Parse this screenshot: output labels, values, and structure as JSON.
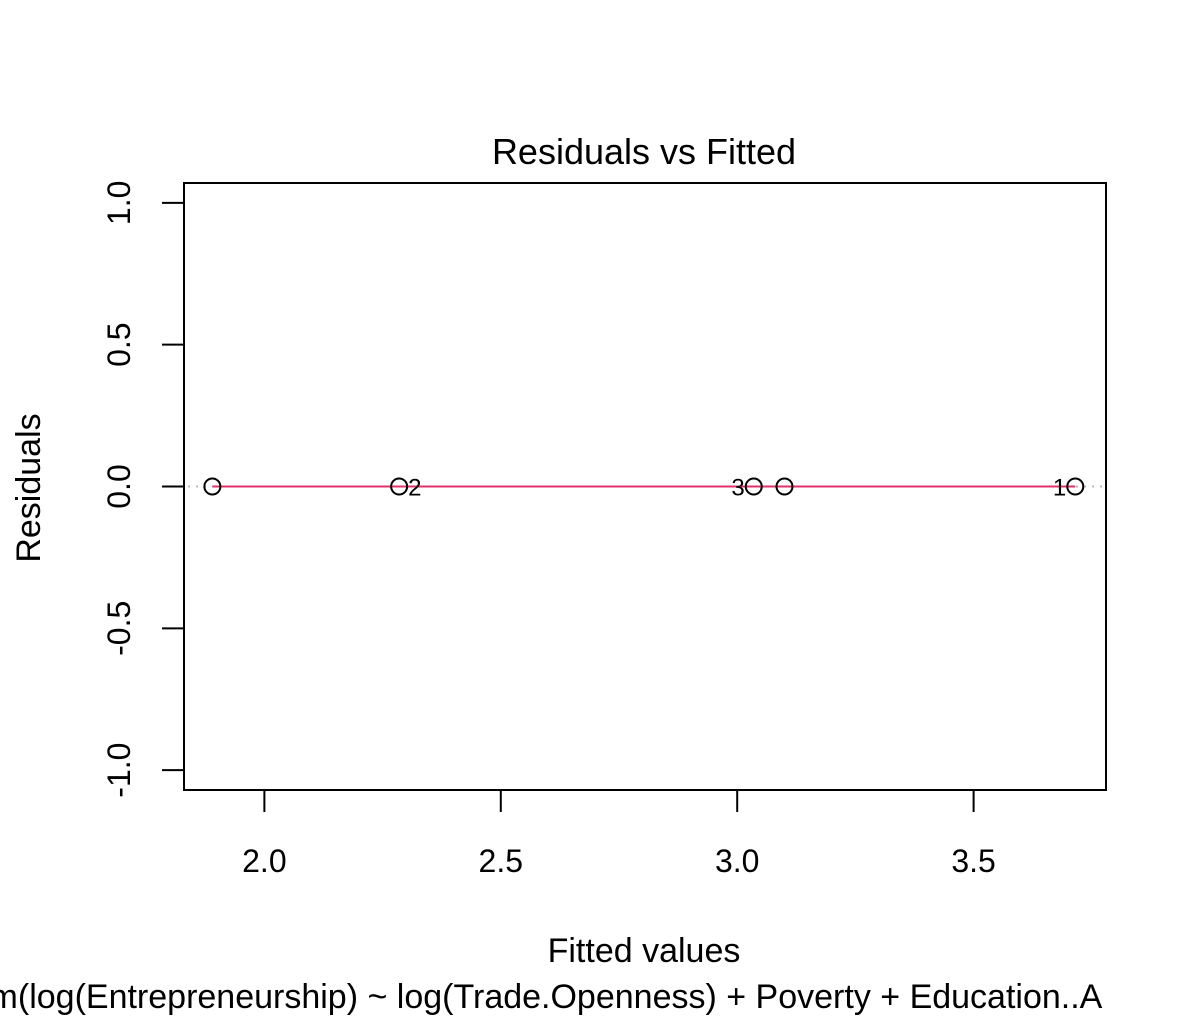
{
  "chart_data": {
    "type": "scatter",
    "title": "Residuals vs Fitted",
    "xlabel": "Fitted values",
    "ylabel": "Residuals",
    "subtitle": "lm(log(Entrepreneurship) ~ log(Trade.Openness) + Poverty + Education..A",
    "xlim": [
      1.83,
      3.78
    ],
    "ylim": [
      -1.07,
      1.07
    ],
    "x_ticks": [
      2.0,
      2.5,
      3.0,
      3.5
    ],
    "x_tick_labels": [
      "2.0",
      "2.5",
      "3.0",
      "3.5"
    ],
    "y_ticks": [
      -1.0,
      -0.5,
      0.0,
      0.5,
      1.0
    ],
    "y_tick_labels": [
      "-1.0",
      "-0.5",
      "0.0",
      "0.5",
      "1.0"
    ],
    "grid": false,
    "reference_line": {
      "y": 0,
      "style": "dotted",
      "color": "#bdbdbd"
    },
    "smooth_line": {
      "color": "#e0306a"
    },
    "points": [
      {
        "x": 1.89,
        "y": 0.0,
        "label": ""
      },
      {
        "x": 2.285,
        "y": 0.0,
        "label": "2",
        "label_side": "right"
      },
      {
        "x": 3.035,
        "y": 0.0,
        "label": "3",
        "label_side": "left"
      },
      {
        "x": 3.1,
        "y": 0.0,
        "label": ""
      },
      {
        "x": 3.715,
        "y": 0.0,
        "label": "1",
        "label_side": "left"
      }
    ]
  }
}
